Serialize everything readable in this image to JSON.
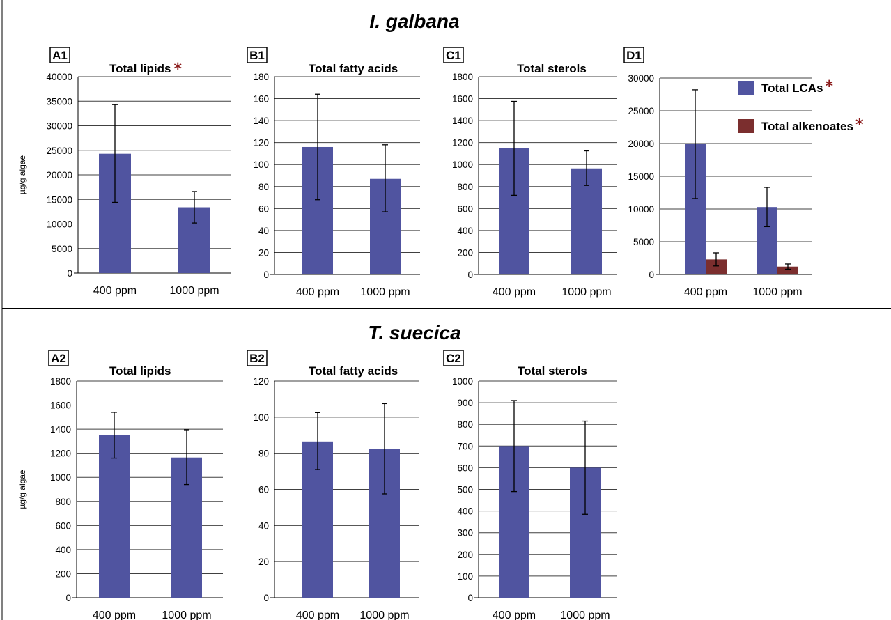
{
  "colors": {
    "bar_blue": "#5054A0",
    "bar_red": "#7B2E2E",
    "grid": "#404040",
    "star": "#8B1A1A"
  },
  "sections": [
    {
      "title": "I. galbana"
    },
    {
      "title": "T. suecica"
    }
  ],
  "chart_data": [
    {
      "panel": "A1",
      "type": "bar",
      "title": "Total lipids",
      "significance": "*",
      "ylabel": "µg/g algae",
      "ylim": [
        0,
        40000
      ],
      "yticks": [
        0,
        5000,
        10000,
        15000,
        20000,
        25000,
        30000,
        35000,
        40000
      ],
      "categories": [
        "400 ppm",
        "1000 ppm"
      ],
      "series": [
        {
          "values": [
            24300,
            13400
          ],
          "error_low": [
            14400,
            10200
          ],
          "error_high": [
            34300,
            16600
          ]
        }
      ]
    },
    {
      "panel": "B1",
      "type": "bar",
      "title": "Total fatty acids",
      "ylim": [
        0,
        180
      ],
      "yticks": [
        0,
        20,
        40,
        60,
        80,
        100,
        120,
        140,
        160,
        180
      ],
      "categories": [
        "400 ppm",
        "1000 ppm"
      ],
      "series": [
        {
          "values": [
            116,
            87
          ],
          "error_low": [
            68,
            57
          ],
          "error_high": [
            164,
            118
          ]
        }
      ]
    },
    {
      "panel": "C1",
      "type": "bar",
      "title": "Total sterols",
      "ylim": [
        0,
        1800
      ],
      "yticks": [
        0,
        200,
        400,
        600,
        800,
        1000,
        1200,
        1400,
        1600,
        1800
      ],
      "categories": [
        "400 ppm",
        "1000 ppm"
      ],
      "series": [
        {
          "values": [
            1150,
            965
          ],
          "error_low": [
            720,
            810
          ],
          "error_high": [
            1575,
            1125
          ]
        }
      ]
    },
    {
      "panel": "D1",
      "type": "bar",
      "title": "",
      "ylim": [
        0,
        30000
      ],
      "yticks": [
        0,
        5000,
        10000,
        15000,
        20000,
        25000,
        30000
      ],
      "categories": [
        "400 ppm",
        "1000 ppm"
      ],
      "legend": "right",
      "series": [
        {
          "name": "Total LCAs",
          "significance": "*",
          "values": [
            19950,
            10300
          ],
          "error_low": [
            11600,
            7300
          ],
          "error_high": [
            28200,
            13300
          ]
        },
        {
          "name": "Total alkenoates",
          "significance": "*",
          "values": [
            2300,
            1200
          ],
          "error_low": [
            1300,
            800
          ],
          "error_high": [
            3300,
            1600
          ]
        }
      ]
    },
    {
      "panel": "A2",
      "type": "bar",
      "title": "Total lipids",
      "ylabel": "µg/g algae",
      "ylim": [
        0,
        1800
      ],
      "yticks": [
        0,
        200,
        400,
        600,
        800,
        1000,
        1200,
        1400,
        1600,
        1800
      ],
      "categories": [
        "400 ppm",
        "1000 ppm"
      ],
      "series": [
        {
          "values": [
            1350,
            1165
          ],
          "error_low": [
            1160,
            940
          ],
          "error_high": [
            1540,
            1395
          ]
        }
      ]
    },
    {
      "panel": "B2",
      "type": "bar",
      "title": "Total fatty acids",
      "ylim": [
        0,
        120
      ],
      "yticks": [
        0,
        20,
        40,
        60,
        80,
        100,
        120
      ],
      "categories": [
        "400 ppm",
        "1000 ppm"
      ],
      "series": [
        {
          "values": [
            86.5,
            82.5
          ],
          "error_low": [
            71,
            57.5
          ],
          "error_high": [
            102.5,
            107.5
          ]
        }
      ]
    },
    {
      "panel": "C2",
      "type": "bar",
      "title": "Total sterols",
      "ylim": [
        0,
        1000
      ],
      "yticks": [
        0,
        100,
        200,
        300,
        400,
        500,
        600,
        700,
        800,
        900,
        1000
      ],
      "categories": [
        "400 ppm",
        "1000 ppm"
      ],
      "series": [
        {
          "values": [
            700,
            600
          ],
          "error_low": [
            490,
            385
          ],
          "error_high": [
            910,
            815
          ]
        }
      ]
    }
  ]
}
